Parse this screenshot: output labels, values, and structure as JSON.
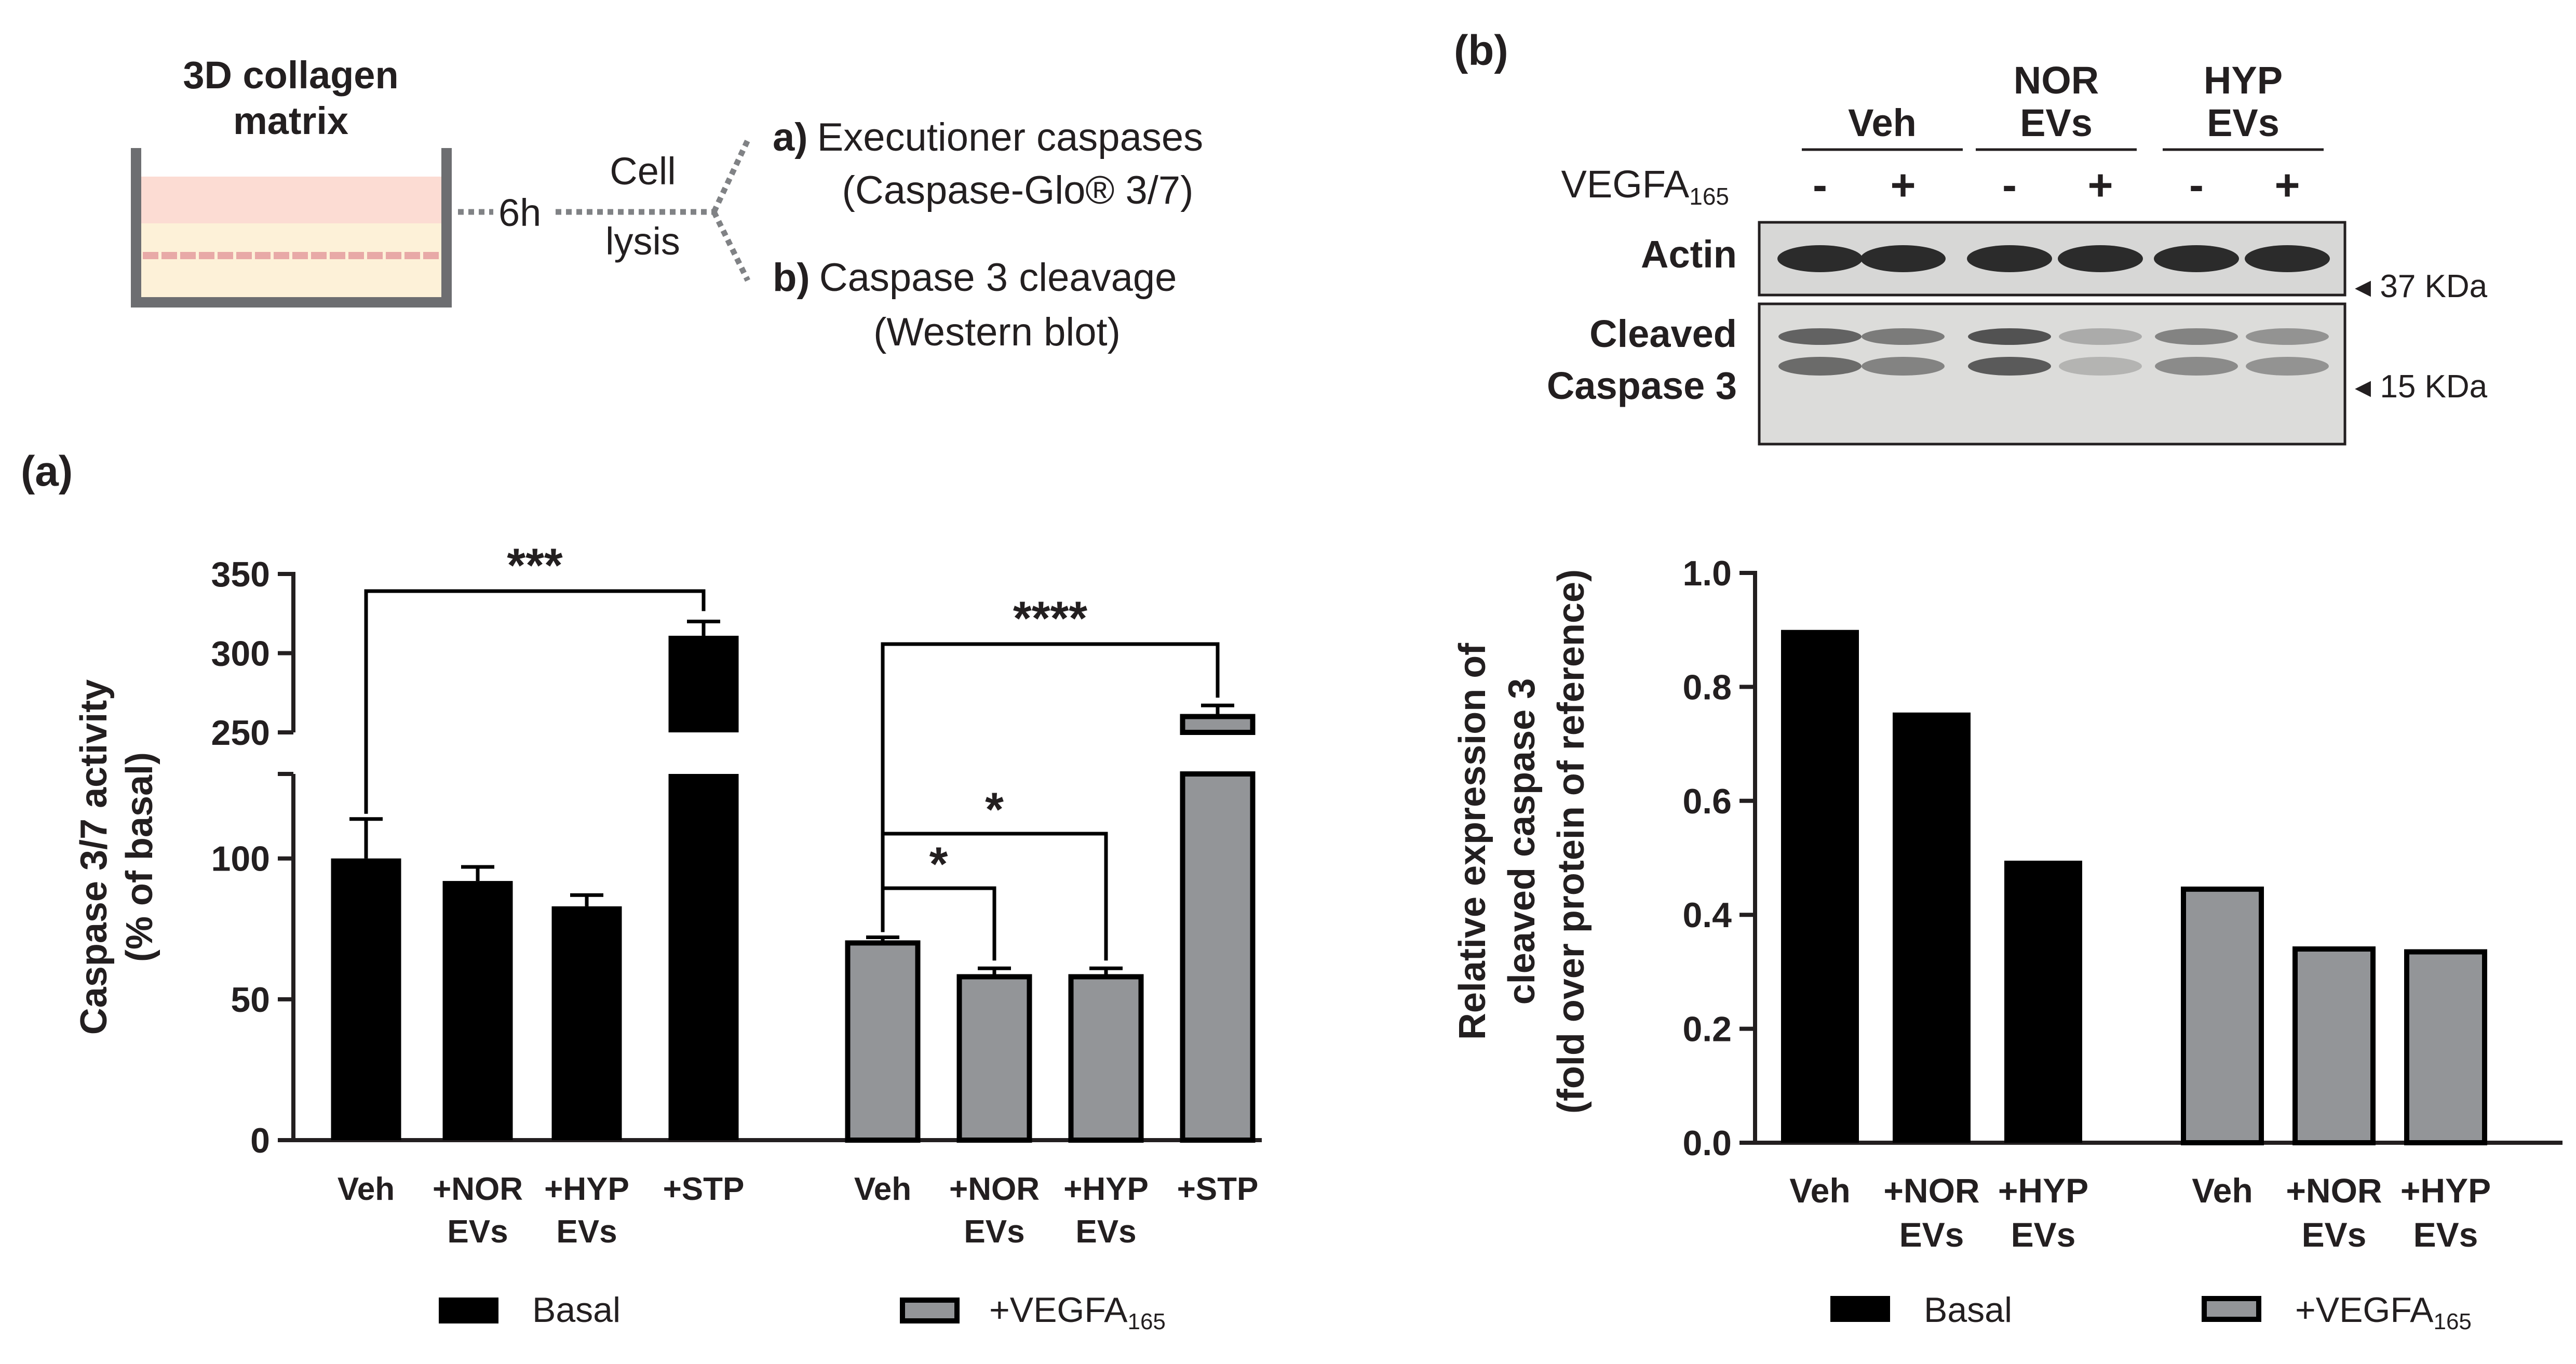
{
  "schematic": {
    "matrix_line1": "3D collagen",
    "matrix_line2": "matrix",
    "time": "6h",
    "lysis_line1": "Cell",
    "lysis_line2": "lysis",
    "branch_a_letter": "a)",
    "branch_a_line1": "Executioner caspases",
    "branch_a_line2": "(Caspase-Glo® 3/7)",
    "branch_b_letter": "b)",
    "branch_b_line1": "Caspase 3 cleavage",
    "branch_b_line2": "(Western blot)"
  },
  "panel_labels": {
    "a": "(a)",
    "b": "(b)"
  },
  "western_blot": {
    "groups": [
      {
        "line1": "Veh",
        "line2": ""
      },
      {
        "line1": "NOR",
        "line2": "EVs"
      },
      {
        "line1": "HYP",
        "line2": "EVs"
      }
    ],
    "treatment_label": "VEGFA",
    "treatment_sub": "165",
    "lane_signs": [
      "-",
      "+",
      "-",
      "+",
      "-",
      "+"
    ],
    "row1_label": "Actin",
    "row2_label_line1": "Cleaved",
    "row2_label_line2": "Caspase 3",
    "marker1": "◂ 37 KDa",
    "marker2": "◂ 15 KDa"
  },
  "chart_data": [
    {
      "type": "bar",
      "title": "",
      "ylabel_line1": "Caspase 3/7 activity",
      "ylabel_line2": "(% of basal)",
      "y_axis_break": {
        "lower_range": [
          0,
          130
        ],
        "upper_range": [
          250,
          350
        ]
      },
      "yticks": [
        "0",
        "50",
        "100",
        "250",
        "300",
        "350"
      ],
      "series": [
        {
          "name": "Basal",
          "color": "#000000",
          "categories": [
            [
              "Veh",
              ""
            ],
            [
              "+NOR",
              "EVs"
            ],
            [
              "+HYP",
              "EVs"
            ],
            [
              "+STP",
              ""
            ]
          ],
          "values": [
            100,
            92,
            83,
            311
          ],
          "errors": [
            14,
            5,
            4,
            9
          ]
        },
        {
          "name": "+VEGFA165",
          "color": "#939598",
          "categories": [
            [
              "Veh",
              ""
            ],
            [
              "+NOR",
              "EVs"
            ],
            [
              "+HYP",
              "EVs"
            ],
            [
              "+STP",
              ""
            ]
          ],
          "values": [
            70,
            58,
            58,
            260
          ],
          "errors": [
            2,
            3,
            3,
            7
          ]
        }
      ],
      "significance": [
        {
          "label": "***",
          "from": "Basal Veh",
          "to": "Basal +STP"
        },
        {
          "label": "****",
          "from": "VEGFA Veh",
          "to": "VEGFA +STP"
        },
        {
          "label": "*",
          "from": "VEGFA Veh",
          "to": "VEGFA +HYP EVs"
        },
        {
          "label": "*",
          "from": "VEGFA Veh",
          "to": "VEGFA +NOR EVs"
        }
      ],
      "legend": [
        {
          "label": "Basal",
          "sub": ""
        },
        {
          "label": "+VEGFA",
          "sub": "165"
        }
      ]
    },
    {
      "type": "bar",
      "title": "",
      "ylabel_line1": "Relative expression of",
      "ylabel_line2": "cleaved caspase 3",
      "ylabel_line3": "(fold over protein of reference)",
      "ylim": [
        0,
        1.0
      ],
      "yticks": [
        "0.0",
        "0.2",
        "0.4",
        "0.6",
        "0.8",
        "1.0"
      ],
      "series": [
        {
          "name": "Basal",
          "color": "#000000",
          "categories": [
            [
              "Veh",
              ""
            ],
            [
              "+NOR",
              "EVs"
            ],
            [
              "+HYP",
              "EVs"
            ]
          ],
          "values": [
            0.9,
            0.755,
            0.495
          ]
        },
        {
          "name": "+VEGFA165",
          "color": "#939598",
          "categories": [
            [
              "Veh",
              ""
            ],
            [
              "+NOR",
              "EVs"
            ],
            [
              "+HYP",
              "EVs"
            ]
          ],
          "values": [
            0.445,
            0.34,
            0.335
          ]
        }
      ],
      "legend": [
        {
          "label": "Basal",
          "sub": ""
        },
        {
          "label": "+VEGFA",
          "sub": "165"
        }
      ]
    }
  ]
}
